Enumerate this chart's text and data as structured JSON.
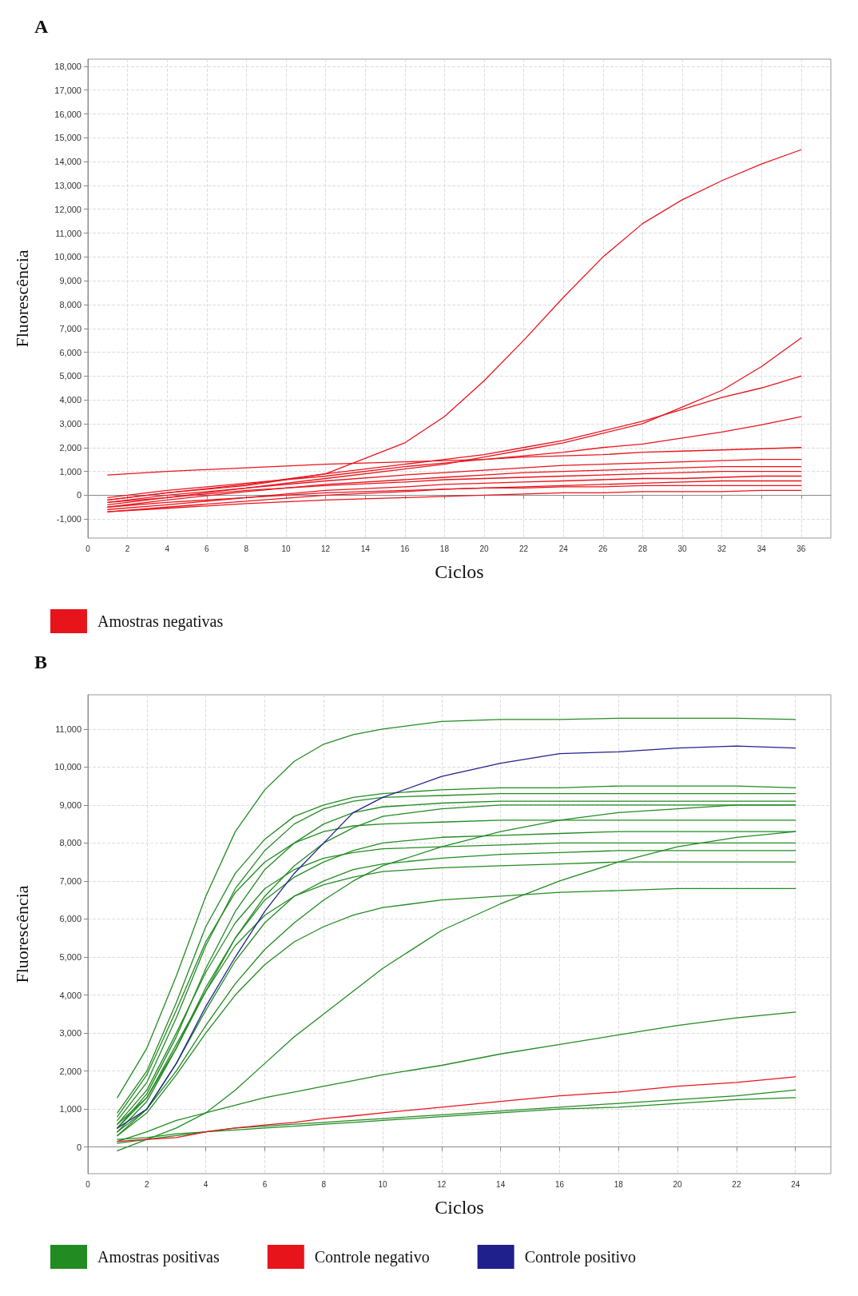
{
  "chart_data": [
    {
      "type": "line",
      "title": "A",
      "xlabel": "Ciclos",
      "ylabel": "Fluorescência",
      "grid": true,
      "legend": "bottom left",
      "marker": "none",
      "line_style": "solid",
      "xlim": [
        0,
        37.5
      ],
      "xticks": [
        0,
        2,
        4,
        6,
        8,
        10,
        12,
        14,
        16,
        18,
        20,
        22,
        24,
        26,
        28,
        30,
        32,
        34,
        36
      ],
      "ylim": [
        -1800,
        18300
      ],
      "yticks": [
        {
          "value": -1000,
          "label": "-1,000"
        },
        0,
        {
          "value": 1000,
          "label": "1,000"
        },
        {
          "value": 2000,
          "label": "2,000"
        },
        {
          "value": 3000,
          "label": "3,000"
        },
        {
          "value": 4000,
          "label": "4,000"
        },
        {
          "value": 5000,
          "label": "5,000"
        },
        {
          "value": 6000,
          "label": "6,000"
        },
        {
          "value": 7000,
          "label": "7,000"
        },
        {
          "value": 8000,
          "label": "8,000"
        },
        {
          "value": 9000,
          "label": "9,000"
        },
        {
          "value": 10000,
          "label": "10,000"
        },
        {
          "value": 11000,
          "label": "11,000"
        },
        {
          "value": 12000,
          "label": "12,000"
        },
        {
          "value": 13000,
          "label": "13,000"
        },
        {
          "value": 14000,
          "label": "14,000"
        },
        {
          "value": 15000,
          "label": "15,000"
        },
        {
          "value": 16000,
          "label": "16,000"
        },
        {
          "value": 17000,
          "label": "17,000"
        },
        {
          "value": 18000,
          "label": "18,000"
        }
      ],
      "x": [
        1,
        4,
        8,
        12,
        16,
        18,
        20,
        22,
        24,
        26,
        28,
        30,
        32,
        34,
        36
      ],
      "series": [
        {
          "name": "Amostras negativas",
          "color": "#e8141c",
          "values": [
            -200,
            100,
            400,
            900,
            2200,
            3300,
            4800,
            6500,
            8300,
            10000,
            11400,
            12400,
            13200,
            13900,
            14500
          ]
        },
        {
          "color": "#e8141c",
          "values": [
            -300,
            0,
            300,
            700,
            1100,
            1300,
            1600,
            1900,
            2200,
            2600,
            3000,
            3700,
            4400,
            5400,
            6600
          ]
        },
        {
          "color": "#e8141c",
          "values": [
            -200,
            100,
            450,
            900,
            1300,
            1500,
            1700,
            2000,
            2300,
            2700,
            3100,
            3600,
            4100,
            4500,
            5000
          ]
        },
        {
          "color": "#e8141c",
          "values": [
            -100,
            200,
            500,
            800,
            1200,
            1350,
            1500,
            1650,
            1800,
            2000,
            2150,
            2400,
            2650,
            2950,
            3300
          ]
        },
        {
          "color": "#e8141c",
          "values": [
            850,
            1000,
            1150,
            1300,
            1400,
            1450,
            1500,
            1600,
            1650,
            1700,
            1800,
            1850,
            1900,
            1950,
            2000
          ]
        },
        {
          "color": "#e8141c",
          "values": [
            -400,
            -100,
            300,
            600,
            850,
            950,
            1050,
            1150,
            1250,
            1300,
            1350,
            1400,
            1450,
            1500,
            1500
          ]
        },
        {
          "color": "#e8141c",
          "values": [
            -500,
            -200,
            150,
            450,
            650,
            750,
            850,
            950,
            1000,
            1050,
            1100,
            1150,
            1200,
            1200,
            1200
          ]
        },
        {
          "color": "#e8141c",
          "values": [
            -300,
            -100,
            200,
            400,
            550,
            650,
            700,
            750,
            800,
            850,
            900,
            950,
            1000,
            1000,
            1000
          ]
        },
        {
          "color": "#e8141c",
          "values": [
            -600,
            -400,
            -100,
            200,
            350,
            450,
            500,
            550,
            600,
            650,
            700,
            700,
            750,
            800,
            800
          ]
        },
        {
          "color": "#e8141c",
          "values": [
            -700,
            -500,
            -250,
            0,
            150,
            250,
            300,
            350,
            400,
            450,
            500,
            550,
            600,
            600,
            600
          ]
        },
        {
          "color": "#e8141c",
          "values": [
            -700,
            -550,
            -350,
            -200,
            -100,
            -50,
            0,
            50,
            100,
            100,
            150,
            150,
            150,
            200,
            200
          ]
        },
        {
          "color": "#e8141c",
          "values": [
            -500,
            -300,
            -100,
            100,
            200,
            250,
            300,
            300,
            350,
            350,
            400,
            400,
            400,
            400,
            400
          ]
        }
      ]
    },
    {
      "type": "line",
      "title": "B",
      "xlabel": "Ciclos",
      "ylabel": "Fluorescência",
      "grid": true,
      "legend": "bottom left",
      "marker": "none",
      "line_style": "solid",
      "xlim": [
        0,
        25.2
      ],
      "xticks": [
        0,
        2,
        4,
        6,
        8,
        10,
        12,
        14,
        16,
        18,
        20,
        22,
        24
      ],
      "ylim": [
        -700,
        11900
      ],
      "yticks": [
        0,
        {
          "value": 1000,
          "label": "1,000"
        },
        {
          "value": 2000,
          "label": "2,000"
        },
        {
          "value": 3000,
          "label": "3,000"
        },
        {
          "value": 4000,
          "label": "4,000"
        },
        {
          "value": 5000,
          "label": "5,000"
        },
        {
          "value": 6000,
          "label": "6,000"
        },
        {
          "value": 7000,
          "label": "7,000"
        },
        {
          "value": 8000,
          "label": "8,000"
        },
        {
          "value": 9000,
          "label": "9,000"
        },
        {
          "value": 10000,
          "label": "10,000"
        },
        {
          "value": 11000,
          "label": "11,000"
        }
      ],
      "x": [
        1,
        2,
        3,
        4,
        5,
        6,
        7,
        8,
        9,
        10,
        12,
        14,
        16,
        18,
        20,
        22,
        24
      ],
      "series": [
        {
          "name": "Amostras positivas",
          "color": "#228b22",
          "values": [
            1300,
            2600,
            4500,
            6600,
            8300,
            9400,
            10150,
            10600,
            10850,
            11000,
            11200,
            11250,
            11250,
            11280,
            11280,
            11280,
            11250
          ]
        },
        {
          "color": "#228b22",
          "values": [
            900,
            2000,
            3800,
            5800,
            7200,
            8100,
            8700,
            9000,
            9200,
            9300,
            9400,
            9450,
            9450,
            9500,
            9500,
            9500,
            9450
          ]
        },
        {
          "color": "#228b22",
          "values": [
            700,
            1700,
            3400,
            5300,
            6800,
            7800,
            8500,
            8900,
            9100,
            9200,
            9250,
            9300,
            9300,
            9300,
            9300,
            9300,
            9300
          ]
        },
        {
          "color": "#228b22",
          "values": [
            500,
            1400,
            2900,
            4700,
            6200,
            7300,
            8000,
            8500,
            8800,
            8950,
            9050,
            9100,
            9100,
            9100,
            9100,
            9100,
            9100
          ]
        },
        {
          "color": "#228b22",
          "values": [
            600,
            1300,
            2600,
            4100,
            5500,
            6600,
            7400,
            8000,
            8400,
            8700,
            8900,
            9000,
            9000,
            9000,
            9000,
            9000,
            9000
          ]
        },
        {
          "color": "#228b22",
          "values": [
            800,
            1900,
            3600,
            5400,
            6700,
            7500,
            8000,
            8300,
            8450,
            8500,
            8550,
            8600,
            8600,
            8600,
            8600,
            8600,
            8600
          ]
        },
        {
          "color": "#228b22",
          "values": [
            400,
            1200,
            2600,
            4200,
            5500,
            6500,
            7100,
            7500,
            7800,
            8000,
            8150,
            8200,
            8250,
            8300,
            8300,
            8300,
            8300
          ]
        },
        {
          "color": "#228b22",
          "values": [
            600,
            1500,
            3000,
            4600,
            5900,
            6800,
            7300,
            7600,
            7750,
            7850,
            7900,
            7950,
            8000,
            8000,
            8000,
            8000,
            8000
          ]
        },
        {
          "color": "#228b22",
          "values": [
            300,
            1000,
            2200,
            3600,
            4900,
            5900,
            6600,
            7000,
            7300,
            7450,
            7600,
            7700,
            7750,
            7800,
            7800,
            7800,
            7800
          ]
        },
        {
          "color": "#228b22",
          "values": [
            500,
            1300,
            2700,
            4100,
            5300,
            6100,
            6600,
            6900,
            7100,
            7250,
            7350,
            7400,
            7450,
            7500,
            7500,
            7500,
            7500
          ]
        },
        {
          "color": "#228b22",
          "values": [
            400,
            1000,
            2000,
            3200,
            4300,
            5200,
            5900,
            6500,
            7000,
            7400,
            7900,
            8300,
            8600,
            8800,
            8900,
            9000,
            9000
          ]
        },
        {
          "color": "#228b22",
          "values": [
            300,
            900,
            1900,
            3000,
            4000,
            4800,
            5400,
            5800,
            6100,
            6300,
            6500,
            6600,
            6700,
            6750,
            6800,
            6800,
            6800
          ]
        },
        {
          "color": "#228b22",
          "values": [
            -100,
            200,
            500,
            900,
            1500,
            2200,
            2900,
            3500,
            4100,
            4700,
            5700,
            6400,
            7000,
            7500,
            7900,
            8150,
            8300
          ]
        },
        {
          "color": "#228b22",
          "values": [
            150,
            400,
            700,
            900,
            1100,
            1300,
            1450,
            1600,
            1750,
            1900,
            2150,
            2450,
            2700,
            2950,
            3200,
            3400,
            3550
          ]
        },
        {
          "color": "#228b22",
          "values": [
            100,
            200,
            300,
            400,
            500,
            550,
            600,
            650,
            700,
            750,
            850,
            950,
            1050,
            1150,
            1250,
            1350,
            1500
          ]
        },
        {
          "color": "#228b22",
          "values": [
            200,
            250,
            350,
            400,
            450,
            500,
            550,
            600,
            650,
            700,
            800,
            900,
            1000,
            1050,
            1150,
            1250,
            1300
          ]
        },
        {
          "name": "Controle negativo",
          "color": "#e8141c",
          "values": [
            150,
            200,
            250,
            400,
            500,
            580,
            650,
            750,
            820,
            900,
            1050,
            1200,
            1350,
            1450,
            1600,
            1700,
            1850
          ]
        },
        {
          "name": "Controle positivo",
          "color": "#20208c",
          "values": [
            500,
            1000,
            2200,
            3700,
            5000,
            6200,
            7200,
            8000,
            8800,
            9200,
            9750,
            10100,
            10350,
            10400,
            10500,
            10550,
            10500
          ]
        }
      ]
    }
  ]
}
